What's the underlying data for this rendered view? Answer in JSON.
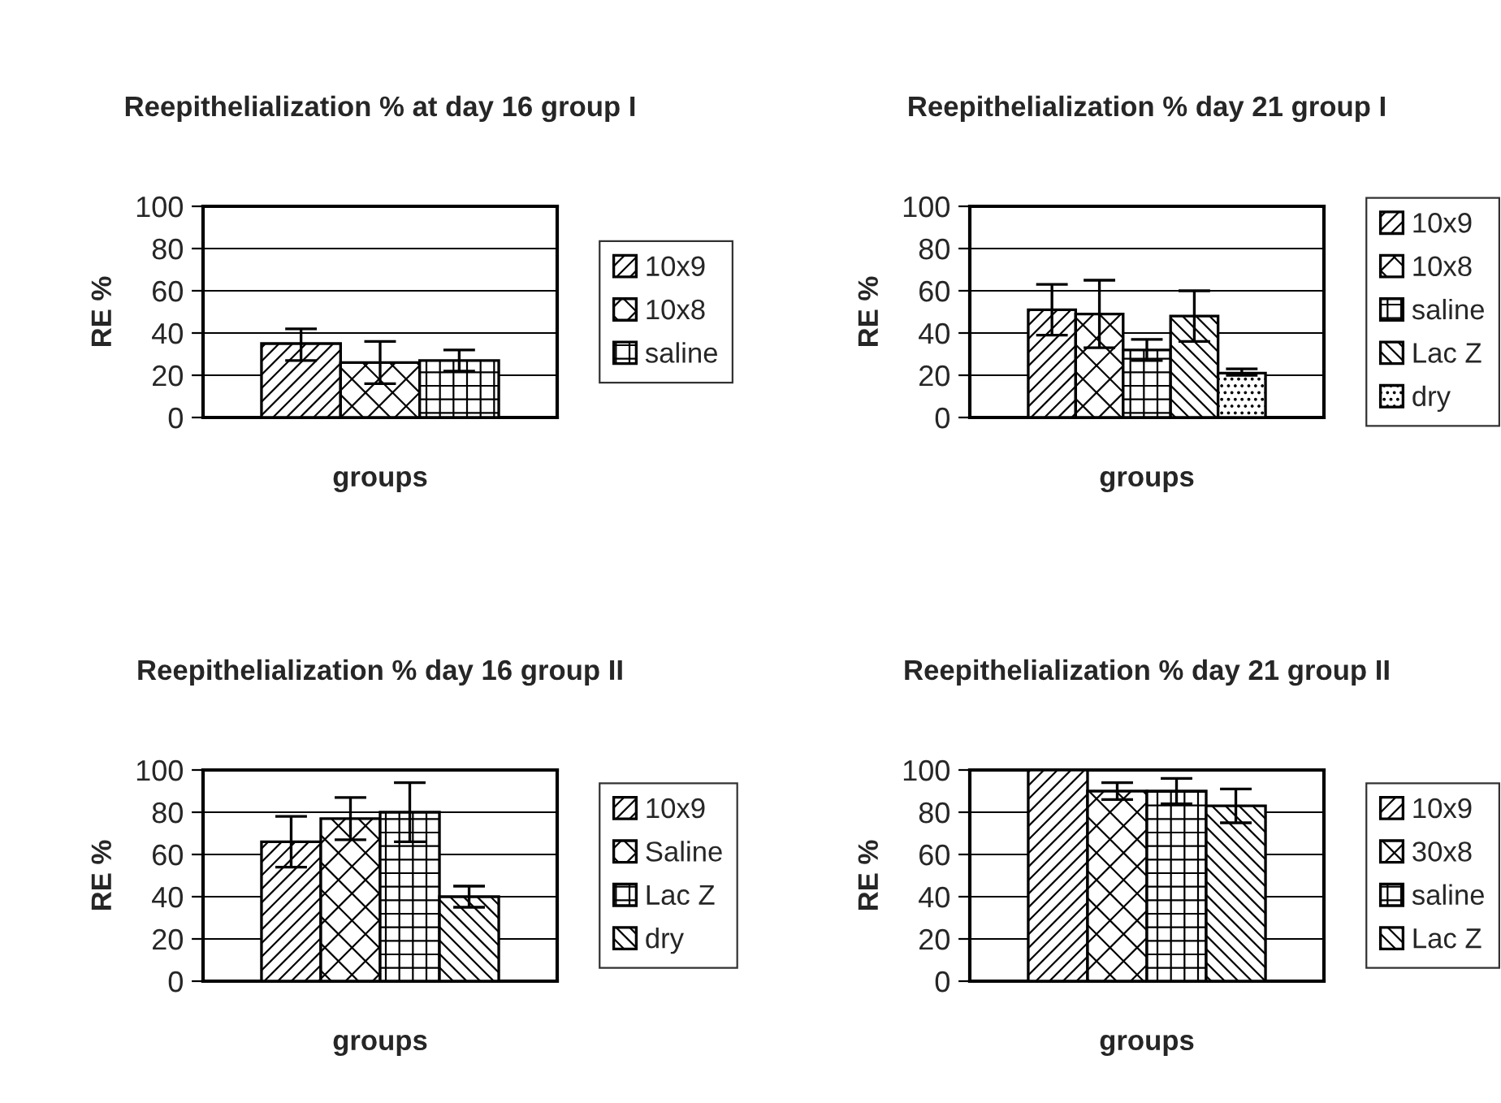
{
  "chart_data": [
    {
      "type": "bar",
      "title": "Reepithelialization % at day 16 group I",
      "xlabel": "groups",
      "ylabel": "RE %",
      "categories": [
        null
      ],
      "ylim": [
        0,
        100
      ],
      "yticks": [
        0,
        20,
        40,
        60,
        80,
        100
      ],
      "grid": "y",
      "legend": "right",
      "series": [
        {
          "name": "10x9",
          "values": [
            35
          ],
          "errors": [
            [
              27,
              42
            ]
          ]
        },
        {
          "name": "10x8",
          "values": [
            26
          ],
          "errors": [
            [
              16,
              36
            ]
          ]
        },
        {
          "name": "saline",
          "values": [
            27
          ],
          "errors": [
            [
              22,
              32
            ]
          ]
        }
      ]
    },
    {
      "type": "bar",
      "title": "Reepithelialization % day 21 group I",
      "xlabel": "groups",
      "ylabel": "RE %",
      "categories": [
        null
      ],
      "ylim": [
        0,
        100
      ],
      "yticks": [
        0,
        20,
        40,
        60,
        80,
        100
      ],
      "grid": "y",
      "legend": "right",
      "series": [
        {
          "name": "10x9",
          "values": [
            51
          ],
          "errors": [
            [
              39,
              63
            ]
          ]
        },
        {
          "name": "10x8",
          "values": [
            49
          ],
          "errors": [
            [
              33,
              65
            ]
          ]
        },
        {
          "name": "saline",
          "values": [
            32
          ],
          "errors": [
            [
              27,
              37
            ]
          ]
        },
        {
          "name": "Lac Z",
          "values": [
            48
          ],
          "errors": [
            [
              36,
              60
            ]
          ]
        },
        {
          "name": "dry",
          "values": [
            21
          ],
          "errors": [
            [
              20,
              23
            ]
          ]
        }
      ]
    },
    {
      "type": "bar",
      "title": "Reepithelialization % day 16 group II",
      "xlabel": "groups",
      "ylabel": "RE %",
      "categories": [
        null
      ],
      "ylim": [
        0,
        100
      ],
      "yticks": [
        0,
        20,
        40,
        60,
        80,
        100
      ],
      "grid": "y",
      "legend": "right",
      "series": [
        {
          "name": "10x9",
          "values": [
            66
          ],
          "errors": [
            [
              54,
              78
            ]
          ]
        },
        {
          "name": "Saline",
          "values": [
            77
          ],
          "errors": [
            [
              67,
              87
            ]
          ]
        },
        {
          "name": "Lac Z",
          "values": [
            80
          ],
          "errors": [
            [
              66,
              94
            ]
          ]
        },
        {
          "name": "dry",
          "values": [
            40
          ],
          "errors": [
            [
              35,
              45
            ]
          ]
        }
      ]
    },
    {
      "type": "bar",
      "title": "Reepithelialization % day 21 group II",
      "xlabel": "groups",
      "ylabel": "RE %",
      "categories": [
        null
      ],
      "ylim": [
        0,
        100
      ],
      "yticks": [
        0,
        20,
        40,
        60,
        80,
        100
      ],
      "grid": "y",
      "legend": "right",
      "series": [
        {
          "name": "10x9",
          "values": [
            100
          ]
        },
        {
          "name": "30x8",
          "values": [
            90
          ],
          "errors": [
            [
              86,
              94
            ]
          ]
        },
        {
          "name": "saline",
          "values": [
            90
          ],
          "errors": [
            [
              84,
              96
            ]
          ]
        },
        {
          "name": "Lac Z",
          "values": [
            83
          ],
          "errors": [
            [
              75,
              91
            ]
          ]
        }
      ]
    }
  ]
}
